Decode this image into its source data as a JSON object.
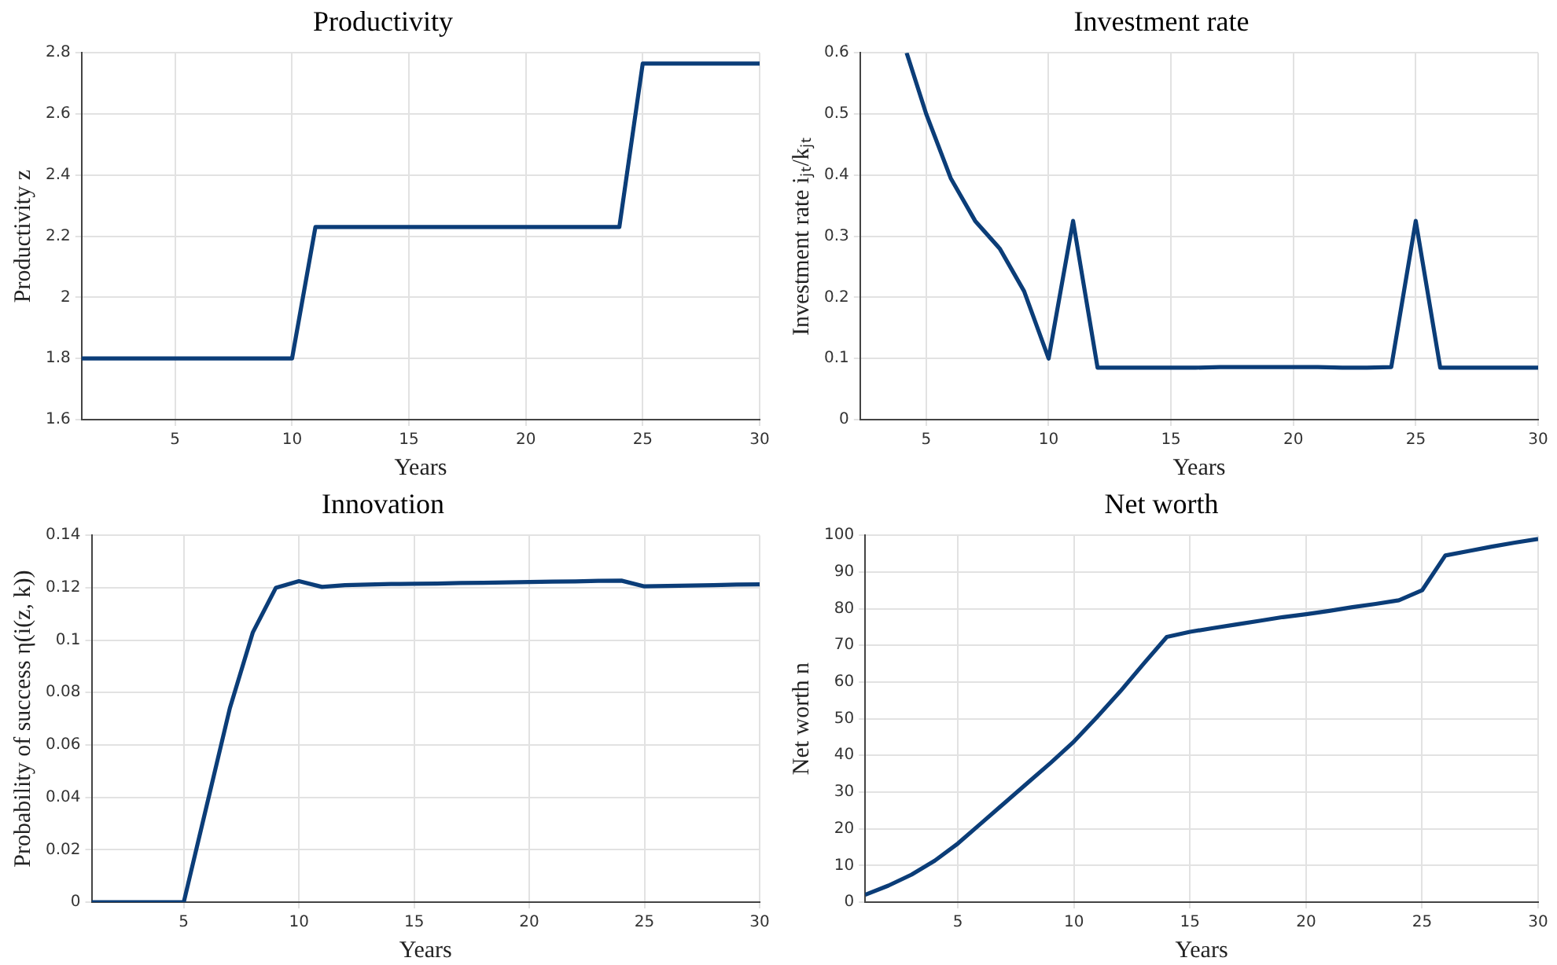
{
  "chart_data": [
    {
      "type": "line",
      "title": "Productivity",
      "xlabel": "Years",
      "ylabel": "Productivity z",
      "x": [
        1,
        2,
        3,
        4,
        5,
        6,
        7,
        8,
        9,
        10,
        11,
        12,
        13,
        14,
        15,
        16,
        17,
        18,
        19,
        20,
        21,
        22,
        23,
        24,
        25,
        26,
        27,
        28,
        29,
        30
      ],
      "series": [
        {
          "color": "#0b3d78",
          "values": [
            1.8,
            1.8,
            1.8,
            1.8,
            1.8,
            1.8,
            1.8,
            1.8,
            1.8,
            1.8,
            2.23,
            2.23,
            2.23,
            2.23,
            2.23,
            2.23,
            2.23,
            2.23,
            2.23,
            2.23,
            2.23,
            2.23,
            2.23,
            2.23,
            2.765,
            2.765,
            2.765,
            2.765,
            2.765,
            2.765
          ]
        }
      ],
      "xlim": [
        1,
        30
      ],
      "xticks": [
        5,
        10,
        15,
        20,
        25,
        30
      ],
      "ylim": [
        1.6,
        2.8
      ],
      "yticks": [
        1.6,
        1.8,
        2,
        2.2,
        2.4,
        2.6,
        2.8
      ],
      "grid": true,
      "legend": false
    },
    {
      "type": "line",
      "title": "Investment rate",
      "xlabel": "Years",
      "ylabel": "Investment rate iⱼₜ/kⱼₜ",
      "series": [
        {
          "color": "#0b3d78",
          "x": [
            4.2,
            5,
            6,
            7,
            8,
            9,
            10,
            11,
            12,
            13,
            14,
            15,
            16,
            17,
            18,
            19,
            20,
            21,
            22,
            23,
            24,
            25,
            26,
            27,
            28,
            29,
            30
          ],
          "values": [
            0.6,
            0.5,
            0.395,
            0.325,
            0.28,
            0.21,
            0.1,
            0.325,
            0.085,
            0.085,
            0.085,
            0.085,
            0.085,
            0.086,
            0.086,
            0.086,
            0.086,
            0.086,
            0.085,
            0.085,
            0.086,
            0.325,
            0.085,
            0.085,
            0.085,
            0.085,
            0.085
          ]
        }
      ],
      "xlim": [
        2.3,
        30
      ],
      "xticks": [
        5,
        10,
        15,
        20,
        25,
        30
      ],
      "ylim": [
        0,
        0.6
      ],
      "yticks": [
        0,
        0.1,
        0.2,
        0.3,
        0.4,
        0.5,
        0.6
      ],
      "grid": true,
      "legend": false
    },
    {
      "type": "line",
      "title": "Innovation",
      "xlabel": "Years",
      "ylabel": "Probability of success η(i(z, k))",
      "x": [
        1,
        2,
        3,
        4,
        5,
        6,
        7,
        8,
        9,
        10,
        11,
        12,
        13,
        14,
        15,
        16,
        17,
        18,
        19,
        20,
        21,
        22,
        23,
        24,
        25,
        26,
        27,
        28,
        29,
        30
      ],
      "series": [
        {
          "color": "#0b3d78",
          "values": [
            0,
            0,
            0,
            0,
            0,
            0.037,
            0.074,
            0.103,
            0.12,
            0.1225,
            0.1203,
            0.121,
            0.1212,
            0.1214,
            0.1215,
            0.1216,
            0.1218,
            0.1219,
            0.122,
            0.1222,
            0.1223,
            0.1224,
            0.1226,
            0.1227,
            0.1205,
            0.1207,
            0.1208,
            0.121,
            0.1212,
            0.1213
          ]
        }
      ],
      "xlim": [
        1,
        30
      ],
      "xticks": [
        5,
        10,
        15,
        20,
        25,
        30
      ],
      "ylim": [
        0,
        0.14
      ],
      "yticks": [
        0,
        0.02,
        0.04,
        0.06,
        0.08,
        0.1,
        0.12,
        0.14
      ],
      "grid": true,
      "legend": false
    },
    {
      "type": "line",
      "title": "Net worth",
      "xlabel": "Years",
      "ylabel": "Net worth n",
      "x": [
        1,
        2,
        3,
        4,
        5,
        6,
        7,
        8,
        9,
        10,
        11,
        12,
        13,
        14,
        15,
        16,
        17,
        18,
        19,
        20,
        21,
        22,
        23,
        24,
        25,
        26,
        27,
        28,
        29,
        30
      ],
      "series": [
        {
          "color": "#0b3d78",
          "values": [
            2,
            4.5,
            7.5,
            11.3,
            16,
            21.5,
            27,
            32.5,
            38,
            43.8,
            50.5,
            57.5,
            65,
            72.3,
            73.7,
            74.7,
            75.7,
            76.7,
            77.7,
            78.5,
            79.4,
            80.4,
            81.3,
            82.3,
            85,
            94.5,
            95.7,
            96.9,
            98,
            99
          ]
        }
      ],
      "xlim": [
        1,
        30
      ],
      "xticks": [
        5,
        10,
        15,
        20,
        25,
        30
      ],
      "ylim": [
        0,
        100
      ],
      "yticks": [
        0,
        10,
        20,
        30,
        40,
        50,
        60,
        70,
        80,
        90,
        100
      ],
      "grid": true,
      "legend": false
    }
  ]
}
